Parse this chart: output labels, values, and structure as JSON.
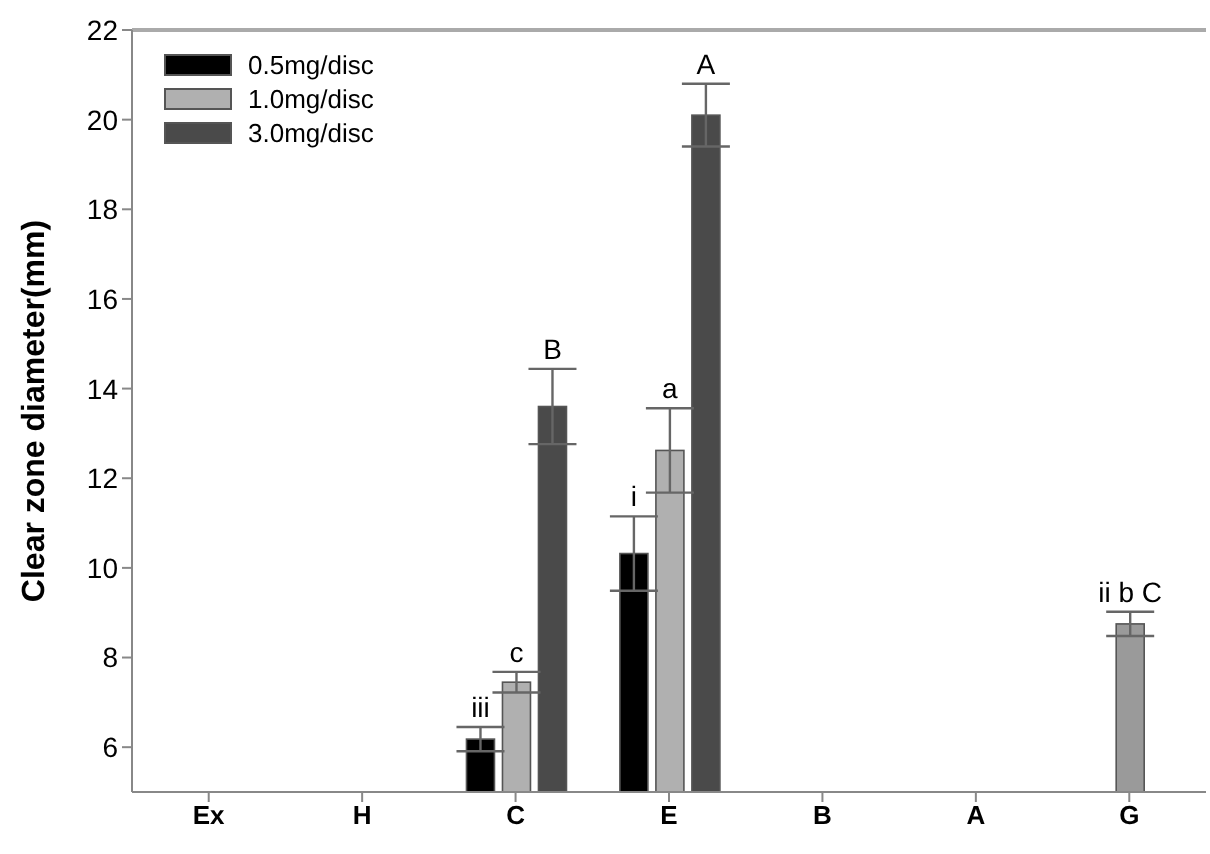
{
  "chart_data": {
    "type": "bar",
    "ylabel": "Clear zone diameter(mm)",
    "categories": [
      "Ex",
      "H",
      "C",
      "E",
      "B",
      "A",
      "G"
    ],
    "series": [
      {
        "name": "0.5mg/disc",
        "color": "#000000",
        "values": [
          null,
          null,
          6.18,
          10.32,
          null,
          null,
          null
        ],
        "errors": [
          null,
          null,
          0.27,
          0.83,
          null,
          null,
          null
        ],
        "value_labels": [
          null,
          null,
          "iii",
          "i",
          null,
          null,
          null
        ]
      },
      {
        "name": "1.0mg/disc",
        "color": "#b0b0b0",
        "values": [
          null,
          null,
          7.45,
          12.62,
          null,
          null,
          null
        ],
        "errors": [
          null,
          null,
          0.23,
          0.94,
          null,
          null,
          null
        ],
        "value_labels": [
          null,
          null,
          "c",
          "a",
          null,
          null,
          null
        ]
      },
      {
        "name": "3.0mg/disc",
        "color": "#4a4a4a",
        "values": [
          null,
          null,
          13.6,
          20.1,
          null,
          null,
          null
        ],
        "errors": [
          null,
          null,
          0.84,
          0.7,
          null,
          null,
          null
        ],
        "value_labels": [
          null,
          null,
          "B",
          "A",
          null,
          null,
          null
        ]
      },
      {
        "color": "#9a9a9a",
        "values": [
          null,
          null,
          null,
          null,
          null,
          null,
          8.75
        ],
        "errors": [
          null,
          null,
          null,
          null,
          null,
          null,
          0.27
        ],
        "value_labels": [
          null,
          null,
          null,
          null,
          null,
          null,
          "ii b C"
        ]
      }
    ],
    "ylim": [
      5,
      22
    ],
    "yticks": [
      6,
      8,
      10,
      12,
      14,
      16,
      18,
      20,
      22
    ],
    "grid": false,
    "legend": "top left"
  }
}
